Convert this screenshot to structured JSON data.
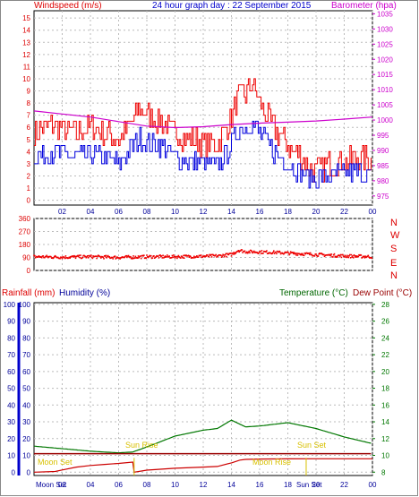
{
  "chart_data": [
    {
      "type": "line",
      "title": "24 hour graph day : 22 September 2015",
      "left_axis": {
        "label": "Windspeed (m/s)",
        "ticks": [
          0,
          1,
          2,
          3,
          4,
          5,
          6,
          7,
          8,
          9,
          10,
          11,
          12,
          13,
          14,
          15
        ],
        "ylim": [
          -0.4,
          15.6
        ]
      },
      "right_axis": {
        "label": "Barometer (hpa)",
        "ticks": [
          975,
          980,
          985,
          990,
          995,
          1000,
          1005,
          1010,
          1015,
          1020,
          1025,
          1030,
          1035
        ],
        "ylim": [
          972,
          1036
        ]
      },
      "x_ticks": [
        "02",
        "04",
        "06",
        "08",
        "10",
        "12",
        "14",
        "16",
        "18",
        "20",
        "22",
        "00"
      ],
      "grid": true,
      "colors": {
        "gust": "#ee0000",
        "average": "#0000dd",
        "barometer": "#cc00cc"
      },
      "series": [
        {
          "name": "gust",
          "x": [
            0,
            1,
            2,
            3,
            4,
            5,
            6,
            7,
            7.5,
            8,
            9,
            10,
            11,
            12,
            13,
            14,
            14.5,
            15,
            15.5,
            16,
            17,
            18,
            19,
            19.5,
            20,
            21,
            22,
            23,
            24
          ],
          "values": [
            5.5,
            6.2,
            5.8,
            5.5,
            6.0,
            5.5,
            5.0,
            6.5,
            7.5,
            7.0,
            6.5,
            5.5,
            5.0,
            4.8,
            4.5,
            7.0,
            8.5,
            8.8,
            9.5,
            8.0,
            6.0,
            4.5,
            3.5,
            2.8,
            2.5,
            3.0,
            3.2,
            3.5,
            3.2
          ]
        },
        {
          "name": "average",
          "x": [
            0,
            1,
            2,
            3,
            4,
            5,
            6,
            7,
            7.5,
            8,
            9,
            10,
            11,
            12,
            13,
            14,
            14.5,
            15,
            15.5,
            16,
            17,
            18,
            19,
            19.5,
            20,
            21,
            22,
            23,
            24
          ],
          "values": [
            3.5,
            4.0,
            3.8,
            3.5,
            3.8,
            3.6,
            3.0,
            4.5,
            5.0,
            4.8,
            4.5,
            3.5,
            3.2,
            3.0,
            2.8,
            4.5,
            5.8,
            6.0,
            6.5,
            5.5,
            4.0,
            3.0,
            2.2,
            1.8,
            1.8,
            2.0,
            2.2,
            2.3,
            2.0
          ]
        },
        {
          "name": "barometer",
          "x": [
            0,
            2,
            4,
            6,
            8,
            10,
            12,
            14,
            16,
            18,
            20,
            22,
            24
          ],
          "values": [
            1003,
            1002,
            1001,
            999.5,
            998,
            997.5,
            997.8,
            998.5,
            999,
            999.3,
            999.7,
            1000.3,
            1001
          ]
        }
      ]
    },
    {
      "type": "scatter",
      "left_axis": {
        "ticks": [
          0,
          90,
          180,
          270,
          360
        ],
        "ylim": [
          0,
          360
        ]
      },
      "right_labels": [
        "N",
        "W",
        "S",
        "E",
        "N"
      ],
      "grid": true,
      "colors": {
        "direction": "#ee0000"
      },
      "series": [
        {
          "name": "direction",
          "x": [
            0,
            2,
            4,
            6,
            8,
            10,
            12,
            13,
            14,
            14.5,
            15,
            16,
            17,
            18,
            20,
            22,
            24
          ],
          "values": [
            95,
            92,
            95,
            90,
            95,
            95,
            98,
            100,
            110,
            140,
            130,
            128,
            125,
            120,
            110,
            100,
            95
          ]
        }
      ]
    },
    {
      "type": "line",
      "left_labels": [
        "Rainfall (mm)",
        "Humidity (%)"
      ],
      "right_labels": [
        "Temperature (°C)",
        "Dew Point (°C)"
      ],
      "left_axis": {
        "ticks": [
          0,
          10,
          20,
          30,
          40,
          50,
          60,
          70,
          80,
          90,
          100
        ],
        "ylim": [
          -2,
          101
        ]
      },
      "right_axis": {
        "ticks": [
          8,
          10,
          12,
          14,
          16,
          18,
          20,
          22,
          24,
          26,
          28
        ],
        "ylim": [
          7.6,
          28.2
        ]
      },
      "grid": true,
      "annotations": [
        "Sun Rise",
        "Sun Set",
        "Moon Set",
        "Moon Rise"
      ],
      "bottom_labels": [
        "Moon Set",
        "Sun Set"
      ],
      "colors": {
        "temperature": "#007700",
        "dew_point": "#990000",
        "rain": "#cc0000",
        "sun": "#d8c000"
      },
      "series": [
        {
          "name": "temperature",
          "x": [
            0,
            2,
            4,
            6,
            7,
            8,
            10,
            12,
            13,
            14,
            14.5,
            15,
            16,
            18,
            20,
            22,
            24
          ],
          "values": [
            11.1,
            10.8,
            10.5,
            10.3,
            10.4,
            11.0,
            12.3,
            13.0,
            13.2,
            14.2,
            13.8,
            13.4,
            13.5,
            13.9,
            13.2,
            12.2,
            11.4
          ]
        },
        {
          "name": "dew_point",
          "x": [
            0,
            2,
            4,
            6,
            8,
            10,
            12,
            14,
            16,
            18,
            20,
            22,
            24
          ],
          "values": [
            10.2,
            10.2,
            10.2,
            10.2,
            10.2,
            10.2,
            10.2,
            10.2,
            10.2,
            10.2,
            10.2,
            10.2,
            10.2
          ]
        },
        {
          "name": "rainfall",
          "x": [
            0,
            1.5,
            2,
            3,
            4,
            5,
            6,
            7,
            7.1,
            8,
            10,
            12,
            13,
            14,
            14.6,
            15,
            16,
            18,
            20,
            22,
            24
          ],
          "values": [
            0,
            0.4,
            1.3,
            3.0,
            4.0,
            4.6,
            5.2,
            6.0,
            0,
            1.2,
            2.3,
            3.0,
            3.4,
            5.5,
            7.2,
            7.6,
            7.8,
            7.9,
            8.0,
            8.0,
            8.0
          ]
        }
      ]
    }
  ]
}
